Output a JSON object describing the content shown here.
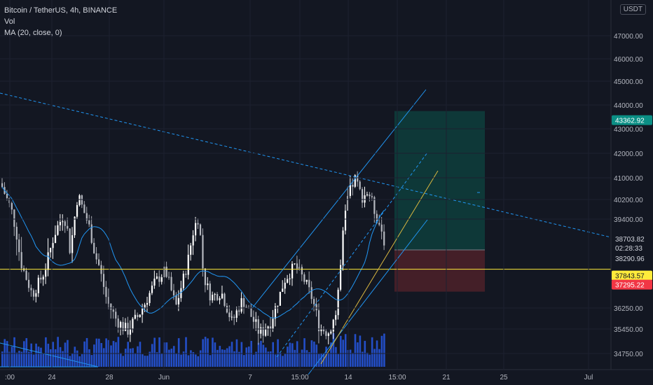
{
  "legend": {
    "symbol": "Bitcoin / TetherUS, 4h, BINANCE",
    "vol": "Vol",
    "ma": "MA (20, close, 0)"
  },
  "currency": "USDT",
  "chart_data": {
    "type": "candlestick",
    "y_axis": {
      "ticks": [
        47000,
        46000,
        45000,
        44000,
        43000,
        42000,
        41000,
        40200,
        39400,
        36250,
        35450,
        34750
      ],
      "tick_labels": [
        "47000.00",
        "46000.00",
        "45000.00",
        "44000.00",
        "43000.00",
        "42000.00",
        "41000.00",
        "40200.00",
        "39400.00",
        "36250.00",
        "35450.00",
        "34750.00"
      ]
    },
    "x_axis": {
      "tick_labels": [
        ":00",
        "24",
        "28",
        "Jun",
        "7",
        "15:00",
        "14",
        "15:00",
        "21",
        "25",
        "Jul"
      ]
    },
    "price_tags": [
      {
        "id": "target",
        "text": "43362.92",
        "bg": "#0b8f85",
        "fg": "#ffffff"
      },
      {
        "id": "last",
        "text": "38703.82",
        "bg": "#ffffff",
        "fg": "#131722"
      },
      {
        "id": "countdown",
        "text": "02:28:33",
        "bg": "#ffffff",
        "fg": "#131722"
      },
      {
        "id": "ma",
        "text": "38290.96",
        "bg": "#ffffff",
        "fg": "#131722"
      },
      {
        "id": "entry",
        "text": "37843.57",
        "bg": "#ffeb3b",
        "fg": "#131722"
      },
      {
        "id": "stop",
        "text": "37295.22",
        "bg": "#f23645",
        "fg": "#ffffff"
      }
    ],
    "levels": {
      "horizontal": 37843.57,
      "target": 43362.92,
      "stop": 37295.22,
      "last": 38703.82
    },
    "colors": {
      "background": "#131722",
      "candle": "#d1d4dc",
      "volume": "#2962ff",
      "ma": "#2196f3",
      "trendline": "#2196f3",
      "horizontal": "#ffeb3b",
      "profit_zone": "#0e3e3c",
      "loss_zone": "#4a2029",
      "grid": "#1c2030"
    }
  }
}
